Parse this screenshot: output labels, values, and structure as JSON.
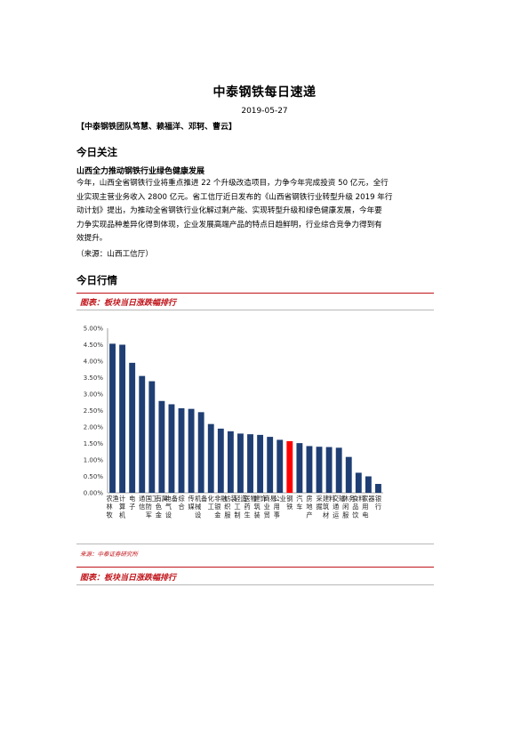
{
  "report": {
    "title": "中泰钢铁每日速递",
    "date": "2019-05-27",
    "authors": "【中泰钢铁团队笃慧、赖福洋、邓轲、曹云】"
  },
  "section_today_focus": {
    "heading": "今日关注",
    "news_title": "山西全力推动钢铁行业绿色健康发展",
    "paragraph_lines": [
      "今年，山西全省钢铁行业将重点推进 22 个升级改造项目，力争今年完成投资 50 亿元，全行",
      "业实现主营业务收入 2800 亿元。省工信厅近日发布的《山西省钢铁行业转型升级 2019 年行",
      "动计划》提出，为推动全省钢铁行业化解过剩产能、实现转型升级和绿色健康发展，今年要",
      "力争实现品种差异化得到体现，企业发展高端产品的特点日趋鲜明，行业综合竞争力得到有",
      "效提升。"
    ],
    "source": "（来源：山西工信厅）"
  },
  "section_market": {
    "heading": "今日行情",
    "chart_caption": "图表：板块当日涨跌幅排行",
    "chart_source": "来源：中泰证券研究所",
    "second_caption": "图表：板块当日涨跌幅排行"
  },
  "colors": {
    "bar": "#1f3e73",
    "highlight": "#ff0000",
    "accent": "#c0141a"
  },
  "chart_data": {
    "type": "bar",
    "categories": [
      "农林牧渔",
      "计算机",
      "电子",
      "通信",
      "国防军工",
      "有色金属",
      "电气设备",
      "综合",
      "传媒",
      "机械设备",
      "化工",
      "非银金融",
      "纺织服装",
      "轻工制造",
      "医药生物",
      "建筑装饰",
      "商业贸易",
      "公用事业",
      "钢铁",
      "汽车",
      "房地产",
      "采掘",
      "建筑材料",
      "交通运输",
      "休闲服务",
      "食品饮料",
      "家用电器",
      "银行"
    ],
    "values": [
      4.53,
      4.5,
      3.95,
      3.55,
      3.39,
      2.79,
      2.69,
      2.57,
      2.55,
      2.45,
      2.09,
      1.95,
      1.87,
      1.8,
      1.78,
      1.76,
      1.7,
      1.61,
      1.57,
      1.51,
      1.42,
      1.4,
      1.39,
      1.37,
      1.09,
      0.61,
      0.5,
      0.27
    ],
    "highlight_index": 18,
    "ylim": [
      0,
      5
    ],
    "yticks": [
      "0.00%",
      "0.50%",
      "1.00%",
      "1.50%",
      "2.00%",
      "2.50%",
      "3.00%",
      "3.50%",
      "4.00%",
      "4.50%",
      "5.00%"
    ],
    "grid": false,
    "title": "",
    "xlabel": "",
    "ylabel": ""
  }
}
